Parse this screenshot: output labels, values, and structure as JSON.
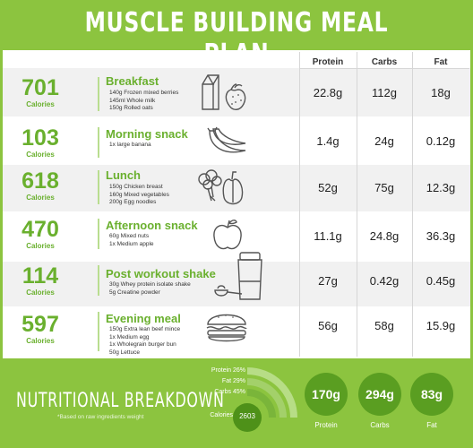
{
  "title": "MUSCLE BUILDING MEAL PLAN",
  "columns": [
    "Protein",
    "Carbs",
    "Fat"
  ],
  "meals": [
    {
      "calories": "701",
      "calories_label": "Calories",
      "name": "Breakfast",
      "items": [
        "140g Frozen mixed berries",
        "145ml Whole milk",
        "150g Rolled oats"
      ],
      "icon": "milk-strawberry-icon",
      "protein": "22.8g",
      "carbs": "112g",
      "fat": "18g"
    },
    {
      "calories": "103",
      "calories_label": "Calories",
      "name": "Morning snack",
      "items": [
        "1x large banana"
      ],
      "icon": "banana-icon",
      "protein": "1.4g",
      "carbs": "24g",
      "fat": "0.12g"
    },
    {
      "calories": "618",
      "calories_label": "Calories",
      "name": "Lunch",
      "items": [
        "150g Chicken breast",
        "160g Mixed vegetables",
        "200g Egg noodles"
      ],
      "icon": "broccoli-pepper-icon",
      "protein": "52g",
      "carbs": "75g",
      "fat": "12.3g"
    },
    {
      "calories": "470",
      "calories_label": "Calories",
      "name": "Afternoon snack",
      "items": [
        "60g Mixed nuts",
        "1x Medium apple"
      ],
      "icon": "apple-icon",
      "protein": "11.1g",
      "carbs": "24.8g",
      "fat": "36.3g"
    },
    {
      "calories": "114",
      "calories_label": "Calories",
      "name": "Post workout shake",
      "items": [
        "30g Whey protein isolate shake",
        "5g Creatine powder"
      ],
      "icon": "shaker-scoop-icon",
      "protein": "27g",
      "carbs": "0.42g",
      "fat": "0.45g"
    },
    {
      "calories": "597",
      "calories_label": "Calories",
      "name": "Evening meal",
      "items": [
        "150g Extra lean beef mince",
        "1x Medium egg",
        "1x Wholegrain burger bun",
        "50g Lettuce"
      ],
      "icon": "burger-icon",
      "protein": "56g",
      "carbs": "58g",
      "fat": "15.9g"
    }
  ],
  "breakdown": {
    "title": "NUTRITIONAL BREAKDOWN",
    "subtitle": "*Based on raw ingredients weight",
    "arc_labels": {
      "protein": "Protein 26%",
      "fat": "Fat 29%",
      "carbs": "Carbs 45%",
      "calories": "Calories"
    },
    "percentages": {
      "protein": 26,
      "fat": 29,
      "carbs": 45
    },
    "total_calories": "2603",
    "totals": [
      {
        "value": "170g",
        "label": "Protein"
      },
      {
        "value": "294g",
        "label": "Carbs"
      },
      {
        "value": "83g",
        "label": "Fat"
      }
    ]
  },
  "colors": {
    "accent": "#8cc43f",
    "text_green": "#6ab02e",
    "dark_green": "#5a9e21",
    "stripe": "#f1f1f1"
  }
}
